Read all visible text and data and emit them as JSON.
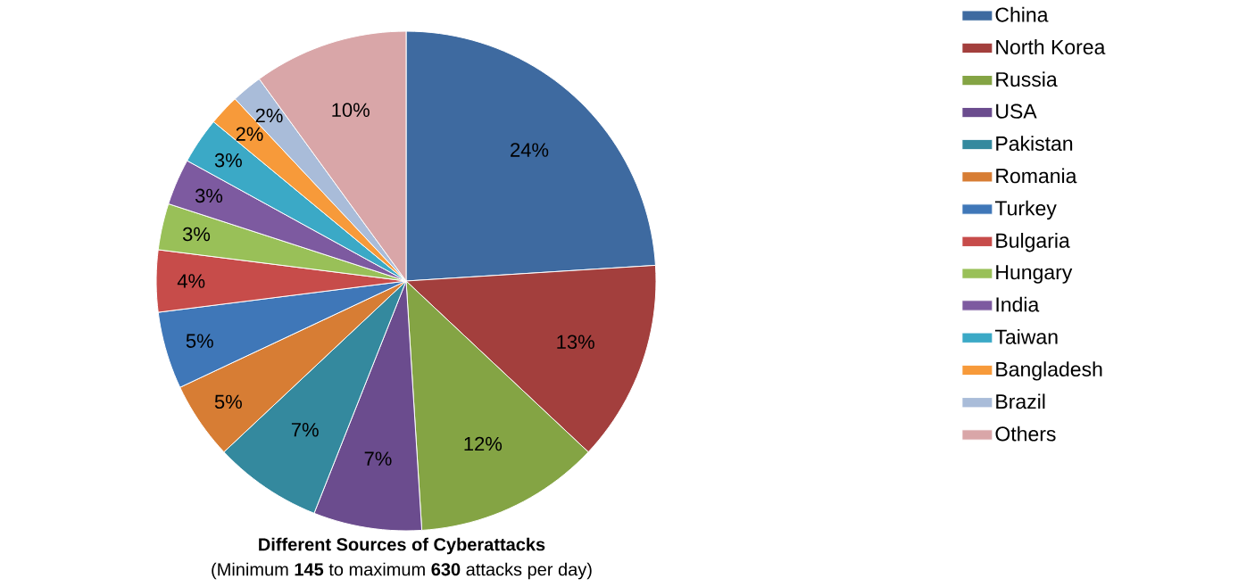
{
  "chart_data": {
    "type": "pie",
    "title": "Different Sources of Cyberattacks",
    "subtitle": "(Minimum **145** to maximum **630** attacks per day)",
    "categories": [
      "China",
      "North Korea",
      "Russia",
      "USA",
      "Pakistan",
      "Romania",
      "Turkey",
      "Bulgaria",
      "Hungary",
      "India",
      "Taiwan",
      "Bangladesh",
      "Brazil",
      "Others"
    ],
    "values": [
      24,
      13,
      12,
      7,
      7,
      5,
      5,
      4,
      3,
      3,
      3,
      2,
      2,
      10
    ],
    "value_labels": [
      "24%",
      "13%",
      "12%",
      "7%",
      "7%",
      "5%",
      "5%",
      "4%",
      "3%",
      "3%",
      "3%",
      "2%",
      "2%",
      "10%"
    ],
    "colors": [
      "#3e6aa0",
      "#a33f3d",
      "#84a444",
      "#6b4c8e",
      "#34899e",
      "#d77d34",
      "#3f77b8",
      "#c74c4a",
      "#99c058",
      "#7d5aa0",
      "#3ba9c6",
      "#f79a3a",
      "#a9bcd9",
      "#d9a6a8"
    ],
    "legend": "right"
  }
}
